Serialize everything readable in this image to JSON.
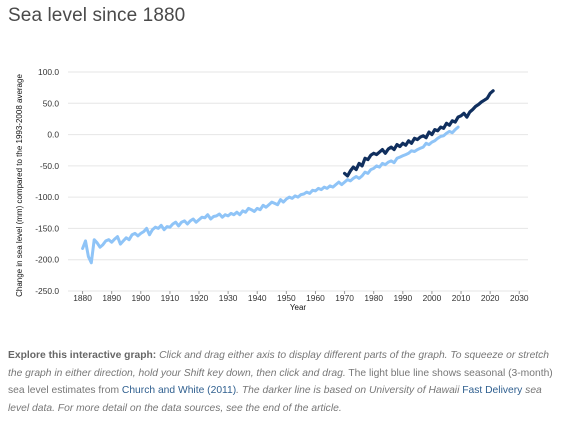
{
  "page": {
    "title": "Sea level since 1880"
  },
  "caption": {
    "lead": "Explore this interactive graph:",
    "part1": " Click and drag either axis to display different parts of the graph. To squeeze or stretch the graph in either direction, hold your Shift key down, then click and drag.",
    "part2": " The light blue line shows seasonal (3-month) sea level estimates from ",
    "link1": "Church and White (2011)",
    "part3": ". The darker line is based on University of Hawaii ",
    "link2": "Fast Delivery",
    "part4": " sea level data. For more detail on the data sources, see the end of the article."
  },
  "colors": {
    "church_white": "#8fc4f7",
    "uh_fast_delivery": "#102f5e",
    "grid": "#e6e6e6",
    "link": "#2f5f8f"
  },
  "chart_data": {
    "type": "line",
    "title": "",
    "xlabel": "Year",
    "ylabel": "Change in sea level (mm) compared to the 1993-2008 average",
    "xlim": [
      1875,
      2033
    ],
    "ylim": [
      -250,
      100
    ],
    "x_ticks": [
      1880,
      1890,
      1900,
      1910,
      1920,
      1930,
      1940,
      1950,
      1960,
      1970,
      1980,
      1990,
      2000,
      2010,
      2020,
      2030
    ],
    "y_ticks": [
      "100.0",
      "50.0",
      "0.0",
      "-50.0",
      "-100.0",
      "-150.0",
      "-200.0",
      "-250.0"
    ],
    "grid": "horizontal",
    "series": [
      {
        "id": "church_white",
        "color": "#8fc4f7",
        "x": [
          1880,
          1881,
          1882,
          1883,
          1884,
          1885,
          1886,
          1887,
          1888,
          1889,
          1890,
          1891,
          1892,
          1893,
          1894,
          1895,
          1896,
          1897,
          1898,
          1899,
          1900,
          1901,
          1902,
          1903,
          1904,
          1905,
          1906,
          1907,
          1908,
          1909,
          1910,
          1911,
          1912,
          1913,
          1914,
          1915,
          1916,
          1917,
          1918,
          1919,
          1920,
          1921,
          1922,
          1923,
          1924,
          1925,
          1926,
          1927,
          1928,
          1929,
          1930,
          1931,
          1932,
          1933,
          1934,
          1935,
          1936,
          1937,
          1938,
          1939,
          1940,
          1941,
          1942,
          1943,
          1944,
          1945,
          1946,
          1947,
          1948,
          1949,
          1950,
          1951,
          1952,
          1953,
          1954,
          1955,
          1956,
          1957,
          1958,
          1959,
          1960,
          1961,
          1962,
          1963,
          1964,
          1965,
          1966,
          1967,
          1968,
          1969,
          1970,
          1971,
          1972,
          1973,
          1974,
          1975,
          1976,
          1977,
          1978,
          1979,
          1980,
          1981,
          1982,
          1983,
          1984,
          1985,
          1986,
          1987,
          1988,
          1989,
          1990,
          1991,
          1992,
          1993,
          1994,
          1995,
          1996,
          1997,
          1998,
          1999,
          2000,
          2001,
          2002,
          2003,
          2004,
          2005,
          2006,
          2007,
          2008,
          2009
        ],
        "values": [
          -182,
          -170,
          -195,
          -205,
          -168,
          -173,
          -180,
          -176,
          -170,
          -168,
          -172,
          -167,
          -163,
          -175,
          -170,
          -165,
          -168,
          -160,
          -158,
          -162,
          -158,
          -155,
          -150,
          -160,
          -152,
          -148,
          -150,
          -145,
          -152,
          -147,
          -148,
          -143,
          -140,
          -146,
          -140,
          -138,
          -143,
          -138,
          -135,
          -140,
          -136,
          -132,
          -133,
          -128,
          -135,
          -131,
          -130,
          -127,
          -132,
          -128,
          -130,
          -126,
          -128,
          -124,
          -128,
          -122,
          -124,
          -118,
          -120,
          -123,
          -118,
          -120,
          -113,
          -116,
          -112,
          -108,
          -110,
          -112,
          -104,
          -108,
          -103,
          -100,
          -102,
          -98,
          -100,
          -96,
          -95,
          -92,
          -94,
          -89,
          -90,
          -86,
          -88,
          -84,
          -86,
          -82,
          -84,
          -80,
          -76,
          -80,
          -76,
          -72,
          -74,
          -70,
          -67,
          -70,
          -66,
          -60,
          -62,
          -56,
          -54,
          -50,
          -52,
          -46,
          -48,
          -44,
          -42,
          -45,
          -38,
          -36,
          -34,
          -32,
          -30,
          -26,
          -27,
          -24,
          -22,
          -20,
          -14,
          -16,
          -12,
          -10,
          -6,
          -3,
          -2,
          2,
          5,
          3,
          8,
          12
        ]
      },
      {
        "id": "uh_fast_delivery",
        "color": "#102f5e",
        "x": [
          1970,
          1971,
          1972,
          1973,
          1974,
          1975,
          1976,
          1977,
          1978,
          1979,
          1980,
          1981,
          1982,
          1983,
          1984,
          1985,
          1986,
          1987,
          1988,
          1989,
          1990,
          1991,
          1992,
          1993,
          1994,
          1995,
          1996,
          1997,
          1998,
          1999,
          2000,
          2001,
          2002,
          2003,
          2004,
          2005,
          2006,
          2007,
          2008,
          2009,
          2010,
          2011,
          2012,
          2013,
          2014,
          2015,
          2016,
          2017,
          2018,
          2019,
          2020,
          2021
        ],
        "values": [
          -62,
          -66,
          -58,
          -52,
          -56,
          -46,
          -50,
          -38,
          -40,
          -33,
          -30,
          -32,
          -28,
          -24,
          -30,
          -23,
          -20,
          -24,
          -16,
          -19,
          -14,
          -17,
          -10,
          -14,
          -6,
          -8,
          -4,
          -2,
          -5,
          4,
          0,
          8,
          6,
          12,
          10,
          18,
          15,
          22,
          20,
          28,
          30,
          34,
          28,
          36,
          40,
          45,
          48,
          52,
          55,
          58,
          66,
          70
        ]
      }
    ]
  }
}
